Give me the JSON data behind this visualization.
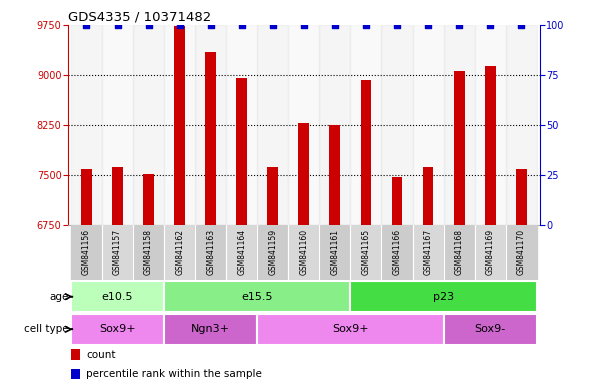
{
  "title": "GDS4335 / 10371482",
  "samples": [
    "GSM841156",
    "GSM841157",
    "GSM841158",
    "GSM841162",
    "GSM841163",
    "GSM841164",
    "GSM841159",
    "GSM841160",
    "GSM841161",
    "GSM841165",
    "GSM841166",
    "GSM841167",
    "GSM841168",
    "GSM841169",
    "GSM841170"
  ],
  "counts": [
    7580,
    7620,
    7510,
    9740,
    9350,
    8950,
    7620,
    8270,
    8240,
    8930,
    7460,
    7620,
    9060,
    9130,
    7580
  ],
  "percentile_ranks": [
    100,
    100,
    100,
    100,
    100,
    100,
    100,
    100,
    100,
    100,
    100,
    100,
    100,
    100,
    100
  ],
  "ylim_left": [
    6750,
    9750
  ],
  "ylim_right": [
    0,
    100
  ],
  "yticks_left": [
    6750,
    7500,
    8250,
    9000,
    9750
  ],
  "yticks_right": [
    0,
    25,
    50,
    75,
    100
  ],
  "bar_color": "#cc0000",
  "dot_color": "#0000cc",
  "age_groups": [
    {
      "label": "e10.5",
      "start": 0,
      "end": 3,
      "color": "#bbffbb"
    },
    {
      "label": "e15.5",
      "start": 3,
      "end": 9,
      "color": "#88ee88"
    },
    {
      "label": "p23",
      "start": 9,
      "end": 15,
      "color": "#44dd44"
    }
  ],
  "cell_groups": [
    {
      "label": "Sox9+",
      "start": 0,
      "end": 3,
      "color": "#ee88ee"
    },
    {
      "label": "Ngn3+",
      "start": 3,
      "end": 6,
      "color": "#cc66cc"
    },
    {
      "label": "Sox9+",
      "start": 6,
      "end": 12,
      "color": "#ee88ee"
    },
    {
      "label": "Sox9-",
      "start": 12,
      "end": 15,
      "color": "#cc66cc"
    }
  ],
  "legend_count_color": "#cc0000",
  "legend_dot_color": "#0000cc",
  "bg_color": "#ffffff",
  "left_axis_color": "#cc0000",
  "right_axis_color": "#0000cc",
  "bar_width": 0.35,
  "col_bg_even": "#d8d8d8",
  "col_bg_odd": "#e8e8e8"
}
